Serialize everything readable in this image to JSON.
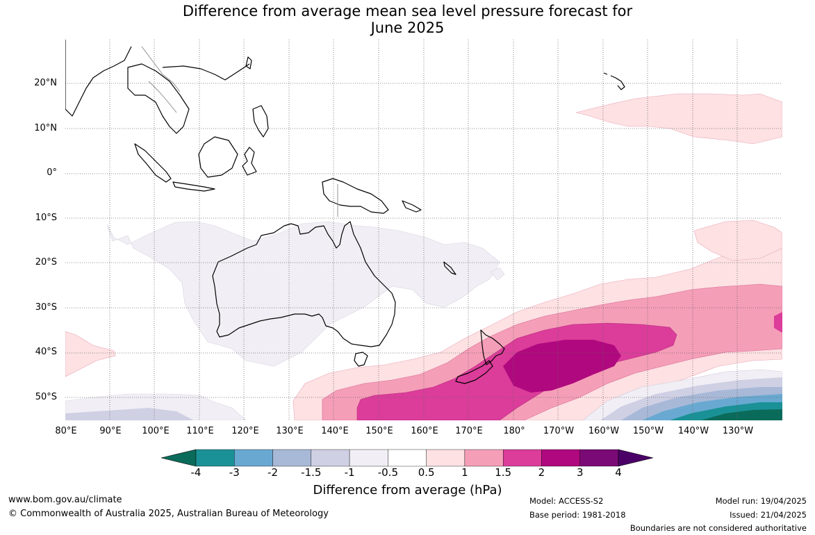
{
  "title_line1": "Difference from average mean sea level pressure forecast for",
  "title_line2": "June 2025",
  "lat_labels": [
    "20°N",
    "10°N",
    "0°",
    "10°S",
    "20°S",
    "30°S",
    "40°S",
    "50°S"
  ],
  "lon_labels": [
    "80°E",
    "90°E",
    "100°E",
    "110°E",
    "120°E",
    "130°E",
    "140°E",
    "150°E",
    "160°E",
    "170°E",
    "180°",
    "170°W",
    "160°W",
    "150°W",
    "140°W",
    "130°W"
  ],
  "colorbar": {
    "ticks": [
      "-4",
      "-3",
      "-2",
      "-1.5",
      "-1",
      "-0.5",
      "0.5",
      "1",
      "1.5",
      "2",
      "3",
      "4"
    ],
    "colors": [
      "#0b6b5a",
      "#1a9196",
      "#69a9d1",
      "#a8b9d8",
      "#cfd0e4",
      "#f1eff5",
      "#ffffff",
      "#fde1e3",
      "#f59eb8",
      "#dc3c9a",
      "#b0087e",
      "#7a0a76",
      "#4b0067"
    ],
    "label": "Difference from average (hPa)"
  },
  "footer": {
    "website": "www.bom.gov.au/climate",
    "copyright": "© Commonwealth of Australia 2025, Australian Bureau of Meteorology",
    "model": "Model: ACCESS-S2",
    "base_period": "Base period: 1981-2018",
    "model_run": "Model run: 19/04/2025",
    "issued": "Issued: 21/04/2025",
    "disclaimer": "Boundaries are not considered authoritative"
  }
}
